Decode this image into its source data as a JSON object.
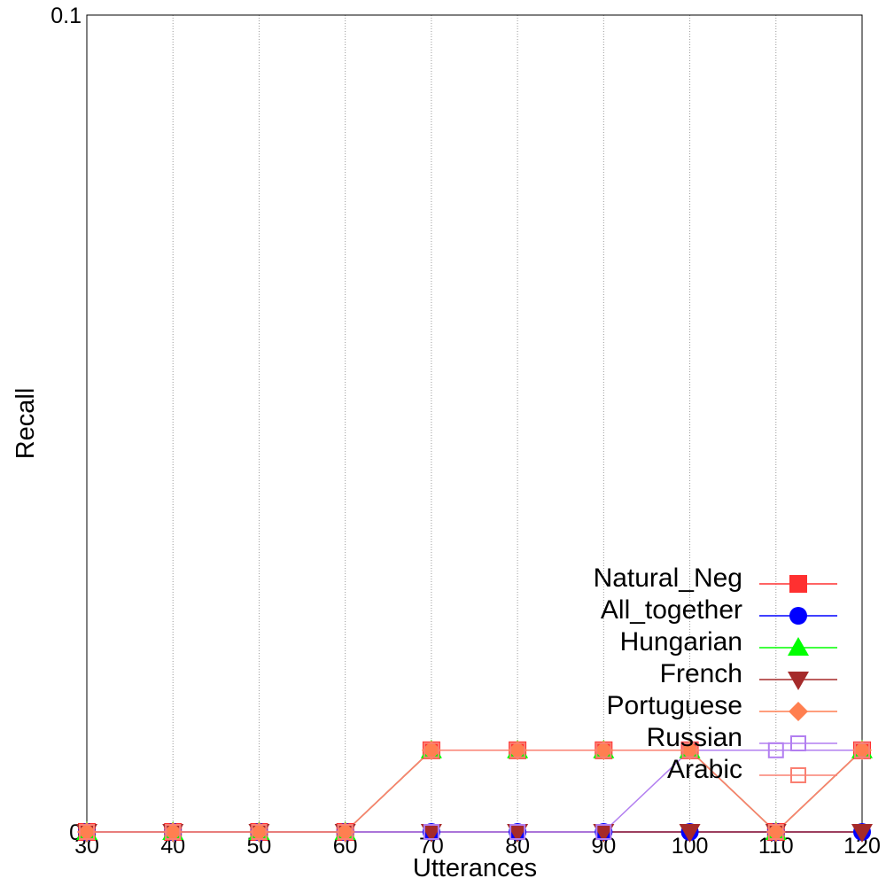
{
  "chart_data": {
    "type": "line",
    "title": "",
    "xlabel": "Utterances",
    "ylabel": "Recall",
    "x": [
      30,
      40,
      50,
      60,
      70,
      80,
      90,
      100,
      110,
      120
    ],
    "xlim": [
      30,
      120
    ],
    "ylim": [
      0,
      0.1
    ],
    "x_ticks": [
      "30",
      "40",
      "50",
      "60",
      "70",
      "80",
      "90",
      "100",
      "110",
      "120"
    ],
    "y_ticks": [
      "0",
      "0.1"
    ],
    "grid": "vertical dotted",
    "legend_position": "bottom-right",
    "series": [
      {
        "name": "Natural_Neg",
        "color": "#ff3030",
        "marker": "square-filled",
        "values": [
          0,
          0,
          0,
          0,
          0.01,
          0.01,
          0.01,
          0.01,
          0,
          0.01
        ]
      },
      {
        "name": "All_together",
        "color": "#0000ff",
        "marker": "circle-filled",
        "values": [
          0,
          0,
          0,
          0,
          0,
          0,
          0,
          0,
          0,
          0
        ]
      },
      {
        "name": "Hungarian",
        "color": "#00ff00",
        "marker": "triangle-up-filled",
        "values": [
          0,
          0,
          0,
          0,
          0.01,
          0.01,
          0.01,
          0.01,
          0,
          0.01
        ]
      },
      {
        "name": "French",
        "color": "#a52a2a",
        "marker": "triangle-down-filled",
        "values": [
          0,
          0,
          0,
          0,
          0,
          0,
          0,
          0,
          0,
          0
        ]
      },
      {
        "name": "Portuguese",
        "color": "#ff7f50",
        "marker": "diamond-filled",
        "values": [
          0,
          0,
          0,
          0,
          0.01,
          0.01,
          0.01,
          0.01,
          0,
          0.01
        ]
      },
      {
        "name": "Russian",
        "color": "#b27ff0",
        "marker": "square-open",
        "values": [
          0,
          0,
          0,
          0,
          0,
          0,
          0,
          0.01,
          0.01,
          0.01
        ]
      },
      {
        "name": "Arabic",
        "color": "#fa8072",
        "marker": "square-open",
        "values": [
          0,
          0,
          0,
          0,
          0.01,
          0.01,
          0.01,
          0.01,
          0,
          0.01
        ]
      }
    ]
  }
}
